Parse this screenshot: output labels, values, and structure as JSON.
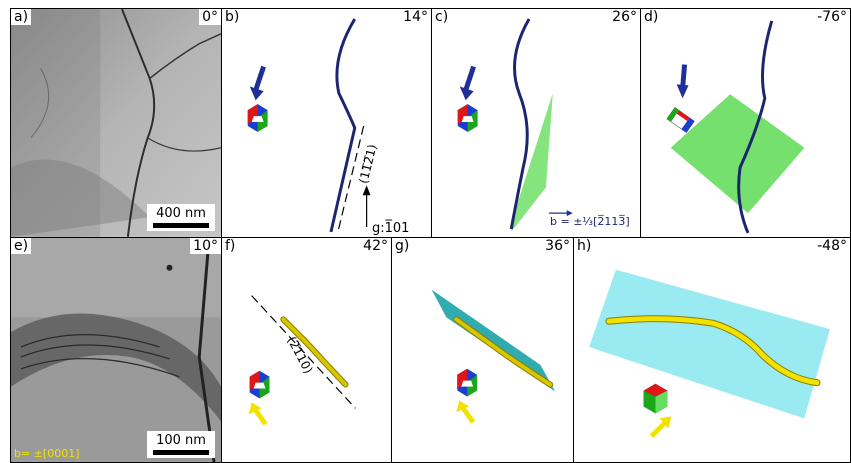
{
  "panels": {
    "a": {
      "label": "a)",
      "angle": "0°",
      "scale": "400 nm"
    },
    "b": {
      "label": "b)",
      "angle": "14°",
      "trace_plane": "(11̅2̅1)",
      "g_vector": "g:1̅01"
    },
    "c": {
      "label": "c)",
      "angle": "26°",
      "burgers": "b = ±⅓[2̅113̅]"
    },
    "d": {
      "label": "d)",
      "angle": "-76°"
    },
    "e": {
      "label": "e)",
      "angle": "10°",
      "scale": "100 nm",
      "burgers": "b= ±[0001]"
    },
    "f": {
      "label": "f)",
      "angle": "42°",
      "trace_plane": "(2̅110)"
    },
    "g": {
      "label": "g)",
      "angle": "36°"
    },
    "h": {
      "label": "h)",
      "angle": "-48°"
    }
  },
  "colors": {
    "dislocation_top": "#1c2570",
    "dislocation_bottom": "#d8c600",
    "arrow_top": "#1e2f9a",
    "arrow_bottom": "#f2e200",
    "slip_plane_top": "#66dd5e",
    "slip_plane_bottom": "#8fe8f0",
    "slip_plane_g": "#1aa3a8"
  },
  "icons": [
    "hexagonal-crystal-icon",
    "view-arrow-icon"
  ]
}
